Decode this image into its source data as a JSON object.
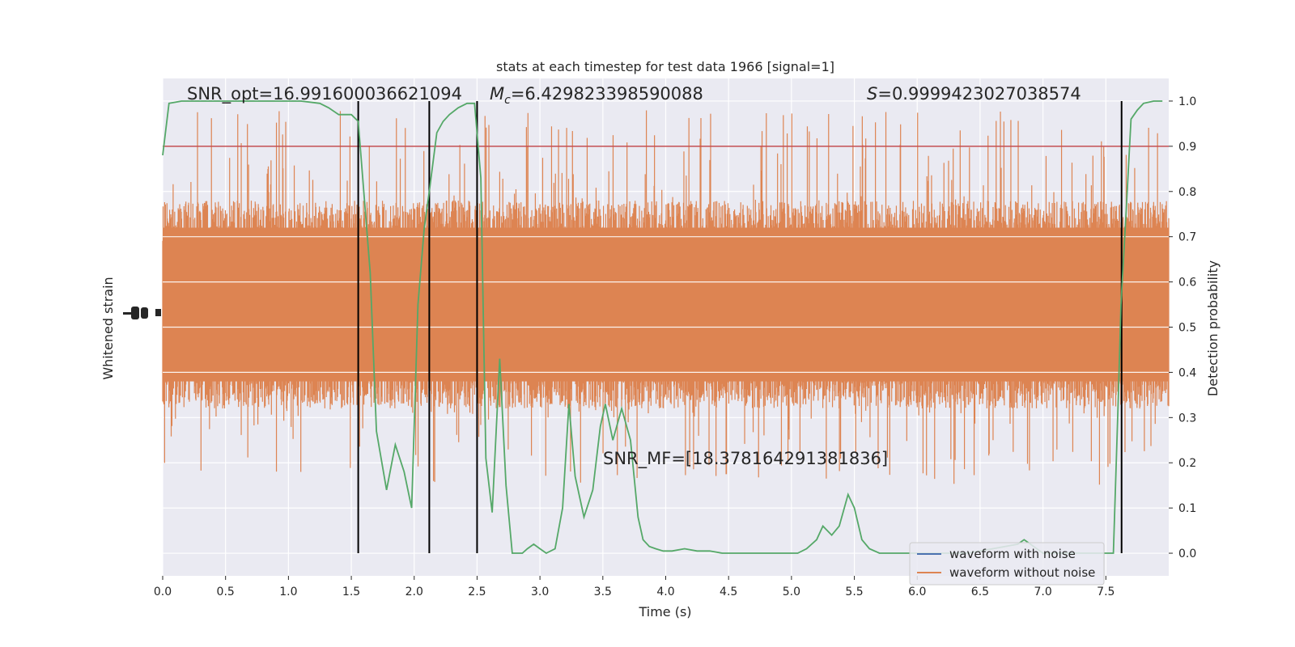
{
  "colors": {
    "background": "#eaeaf2",
    "grid": "#ffffff",
    "noise": "#dd8452",
    "clean": "#4c72b0",
    "probability": "#55a868",
    "threshold": "#c44e52",
    "event_line": "#000000"
  },
  "chart_data": {
    "type": "line",
    "title": "stats at each timestep for test data 1966 [signal=1]",
    "xlabel": "Time (s)",
    "ylabel_left": "Whitened strain",
    "ylabel_right": "Detection probability",
    "xlim": [
      0.0,
      8.0
    ],
    "ylim_right": [
      -0.05,
      1.05
    ],
    "x_ticks": [
      "0.0",
      "0.5",
      "1.0",
      "1.5",
      "2.0",
      "2.5",
      "3.0",
      "3.5",
      "4.0",
      "4.5",
      "5.0",
      "5.5",
      "6.0",
      "6.5",
      "7.0",
      "7.5"
    ],
    "y_ticks_right": [
      "0.0",
      "0.1",
      "0.2",
      "0.3",
      "0.4",
      "0.5",
      "0.6",
      "0.7",
      "0.8",
      "0.9",
      "1.0"
    ],
    "grid": true,
    "legend_position": "bottom-right",
    "legend": [
      "waveform with noise",
      "waveform without noise"
    ],
    "annotations": {
      "snr_opt": "SNR_opt=16.991600036621094",
      "mc_symbol": "M",
      "mc_sub": "c",
      "mc_value": "=6.429823398590088",
      "s_symbol": "S",
      "s_value": "=0.9999423027038574",
      "snr_mf": "SNR_MF=[18.378164291381836]"
    },
    "threshold": 0.9,
    "event_times": [
      1.555,
      2.12,
      2.5,
      7.625
    ],
    "noise_band": {
      "typical_low": 0.38,
      "typical_high": 0.72,
      "spike_low": 0.15,
      "spike_high": 0.98,
      "center": 0.55
    },
    "series": [
      {
        "name": "Detection probability",
        "x": [
          0.0,
          0.05,
          0.15,
          0.3,
          0.5,
          0.7,
          0.9,
          1.1,
          1.25,
          1.32,
          1.4,
          1.5,
          1.555,
          1.65,
          1.7,
          1.78,
          1.85,
          1.92,
          1.98,
          2.03,
          2.08,
          2.12,
          2.18,
          2.23,
          2.28,
          2.35,
          2.42,
          2.48,
          2.53,
          2.57,
          2.62,
          2.68,
          2.73,
          2.78,
          2.82,
          2.86,
          2.9,
          2.95,
          3.0,
          3.05,
          3.12,
          3.18,
          3.23,
          3.28,
          3.35,
          3.42,
          3.48,
          3.52,
          3.58,
          3.65,
          3.72,
          3.78,
          3.82,
          3.87,
          3.92,
          3.98,
          4.05,
          4.15,
          4.25,
          4.35,
          4.45,
          4.55,
          4.65,
          4.75,
          4.85,
          4.95,
          5.05,
          5.12,
          5.2,
          5.25,
          5.32,
          5.38,
          5.45,
          5.5,
          5.56,
          5.62,
          5.7,
          5.85,
          6.0,
          6.2,
          6.4,
          6.6,
          6.8,
          6.85,
          7.0,
          7.2,
          7.4,
          7.5,
          7.56,
          7.6,
          7.62,
          7.66,
          7.7,
          7.75,
          7.8,
          7.88,
          7.95
        ],
        "y": [
          0.88,
          0.995,
          1.0,
          1.0,
          1.0,
          1.0,
          1.0,
          1.0,
          0.995,
          0.985,
          0.97,
          0.97,
          0.955,
          0.62,
          0.27,
          0.14,
          0.24,
          0.18,
          0.1,
          0.55,
          0.72,
          0.8,
          0.93,
          0.955,
          0.97,
          0.985,
          0.995,
          0.995,
          0.83,
          0.21,
          0.09,
          0.43,
          0.15,
          0.0,
          0.0,
          0.0,
          0.01,
          0.02,
          0.01,
          0.0,
          0.01,
          0.1,
          0.33,
          0.17,
          0.08,
          0.14,
          0.28,
          0.33,
          0.25,
          0.32,
          0.25,
          0.08,
          0.03,
          0.015,
          0.01,
          0.005,
          0.005,
          0.01,
          0.005,
          0.005,
          0.0,
          0.0,
          0.0,
          0.0,
          0.0,
          0.0,
          0.0,
          0.01,
          0.03,
          0.06,
          0.04,
          0.06,
          0.13,
          0.1,
          0.03,
          0.01,
          0.0,
          0.0,
          0.0,
          0.0,
          0.0,
          0.01,
          0.02,
          0.03,
          0.0,
          0.0,
          0.0,
          0.0,
          0.0,
          0.35,
          0.55,
          0.75,
          0.96,
          0.98,
          0.995,
          1.0,
          1.0
        ]
      }
    ]
  }
}
